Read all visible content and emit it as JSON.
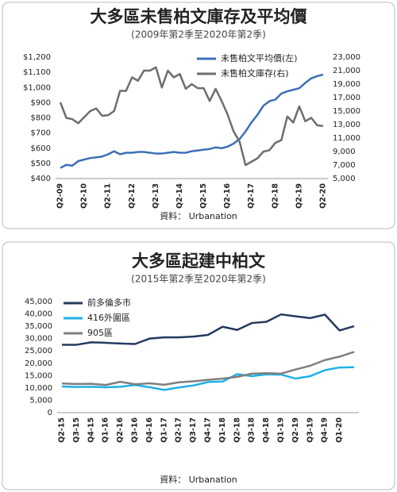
{
  "chart_data": [
    {
      "type": "line",
      "title": "大多區未售柏文庫存及平均價",
      "subtitle": "(2009年第2季至2020年第2季)",
      "categories": [
        "Q2-09",
        null,
        null,
        null,
        "Q2-10",
        null,
        null,
        null,
        "Q2-11",
        null,
        null,
        null,
        "Q2-12",
        null,
        null,
        null,
        "Q2-13",
        null,
        null,
        null,
        "Q2-14",
        null,
        null,
        null,
        "Q2-15",
        null,
        null,
        null,
        "Q2-16",
        null,
        null,
        null,
        "Q2-17",
        null,
        null,
        null,
        "Q2-18",
        null,
        null,
        null,
        "Q2-19",
        null,
        null,
        null,
        "Q2-20"
      ],
      "series": [
        {
          "name": "未售柏文平均價(左)",
          "color": "#3d6fb6",
          "values": [
            470,
            490,
            485,
            515,
            525,
            535,
            540,
            545,
            560,
            580,
            560,
            570,
            570,
            575,
            575,
            570,
            565,
            565,
            570,
            575,
            570,
            570,
            580,
            585,
            590,
            595,
            605,
            600,
            610,
            630,
            660,
            710,
            770,
            820,
            880,
            910,
            920,
            960,
            975,
            985,
            995,
            1030,
            1060,
            1075,
            1085
          ]
        },
        {
          "name": "未售柏文庫存(右)",
          "color": "#6e6e6e",
          "axis": "y2",
          "values": [
            16300,
            14000,
            13800,
            13200,
            14100,
            15000,
            15400,
            14300,
            14400,
            15000,
            18000,
            18000,
            20000,
            19500,
            21000,
            21000,
            21500,
            18500,
            21000,
            20000,
            20500,
            18300,
            19000,
            18400,
            18400,
            16500,
            18300,
            16500,
            14500,
            12000,
            10500,
            7000,
            7500,
            8000,
            9000,
            9200,
            10300,
            10700,
            14200,
            13300,
            15700,
            13500,
            14000,
            12900,
            12800
          ]
        }
      ],
      "ylim": [
        400,
        1200
      ],
      "yticks": [
        {
          "value": 400,
          "label": "$400"
        },
        {
          "value": 500,
          "label": "$500"
        },
        {
          "value": 600,
          "label": "$600"
        },
        {
          "value": 700,
          "label": "$700"
        },
        {
          "value": 800,
          "label": "$800"
        },
        {
          "value": 900,
          "label": "$900"
        },
        {
          "value": 1000,
          "label": "$1,000"
        },
        {
          "value": 1100,
          "label": "$1,100"
        },
        {
          "value": 1200,
          "label": "$1,200"
        }
      ],
      "y2lim": [
        5000,
        23000
      ],
      "y2ticks": [
        {
          "value": 5000,
          "label": "5,000"
        },
        {
          "value": 7000,
          "label": "7,000"
        },
        {
          "value": 9000,
          "label": "9,000"
        },
        {
          "value": 11000,
          "label": "11,000"
        },
        {
          "value": 13000,
          "label": "13,000"
        },
        {
          "value": 15000,
          "label": "15,000"
        },
        {
          "value": 17000,
          "label": "17,000"
        },
        {
          "value": 19000,
          "label": "19,000"
        },
        {
          "value": 21000,
          "label": "21,000"
        },
        {
          "value": 23000,
          "label": "23,000"
        }
      ],
      "legend": "upper right",
      "source": "資料： Urbanation"
    },
    {
      "type": "line",
      "title": "大多區起建中柏文",
      "subtitle": "(2015年第2季至2020年第2季)",
      "categories": [
        "Q2-15",
        "Q3-15",
        "Q4-15",
        "Q1-16",
        "Q2-16",
        "Q3-16",
        "Q4-16",
        "Q1-17",
        "Q2-17",
        "Q3-17",
        "Q4-17",
        "Q1-18",
        "Q2-18",
        "Q3-18",
        "Q4-18",
        "Q1-19",
        "Q2-19",
        "Q3-19",
        "Q4-19",
        "Q1-20",
        null
      ],
      "series": [
        {
          "name": "前多倫多市",
          "color": "#243a5e",
          "values": [
            27500,
            27500,
            28500,
            28300,
            28000,
            27800,
            30000,
            30500,
            30500,
            30800,
            31500,
            34800,
            33500,
            36300,
            36800,
            39800,
            39000,
            38300,
            39700,
            33300,
            35000
          ]
        },
        {
          "name": "416外圍區",
          "color": "#1eb1e6",
          "values": [
            10600,
            10400,
            10500,
            10300,
            10500,
            11200,
            10300,
            9200,
            10200,
            11000,
            12400,
            12600,
            15600,
            14800,
            15500,
            15400,
            13800,
            14800,
            17200,
            18300,
            18400
          ]
        },
        {
          "name": "905區",
          "color": "#7f7f7f",
          "values": [
            11800,
            11600,
            11700,
            11200,
            12500,
            11500,
            11900,
            11300,
            12300,
            12700,
            13300,
            13800,
            14500,
            15800,
            16000,
            15800,
            17500,
            19000,
            21300,
            22700,
            24600
          ]
        }
      ],
      "ylim": [
        0,
        45000
      ],
      "yticks": [
        0,
        {
          "value": 5000,
          "label": "5,000"
        },
        {
          "value": 10000,
          "label": "10,000"
        },
        {
          "value": 15000,
          "label": "15,000"
        },
        {
          "value": 20000,
          "label": "20,000"
        },
        {
          "value": 25000,
          "label": "25,000"
        },
        {
          "value": 30000,
          "label": "30,000"
        },
        {
          "value": 35000,
          "label": "35,000"
        },
        {
          "value": 40000,
          "label": "40,000"
        },
        {
          "value": 45000,
          "label": "45,000"
        }
      ],
      "legend": "upper left",
      "source": "資料： Urbanation"
    }
  ]
}
